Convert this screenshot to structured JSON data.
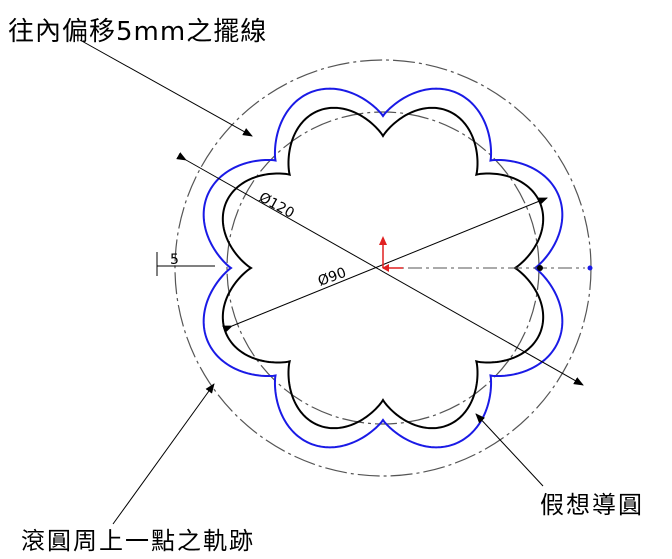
{
  "labels": {
    "offset_line": "往內偏移5mm之擺線",
    "imaginary_guide_circle": "假想導圓",
    "rolling_point_trace": "滾圓周上一點之軌跡"
  },
  "dimensions": {
    "outer_diameter": "Ø120",
    "inner_diameter": "Ø90",
    "offset": "5"
  },
  "colors": {
    "trace_curve": "#1a1ae6",
    "offset_curve": "#000000",
    "centerline": "#555555",
    "axis_x": "#e02020",
    "axis_y": "#e02020"
  },
  "icons": {
    "origin": "origin-axes-icon"
  }
}
